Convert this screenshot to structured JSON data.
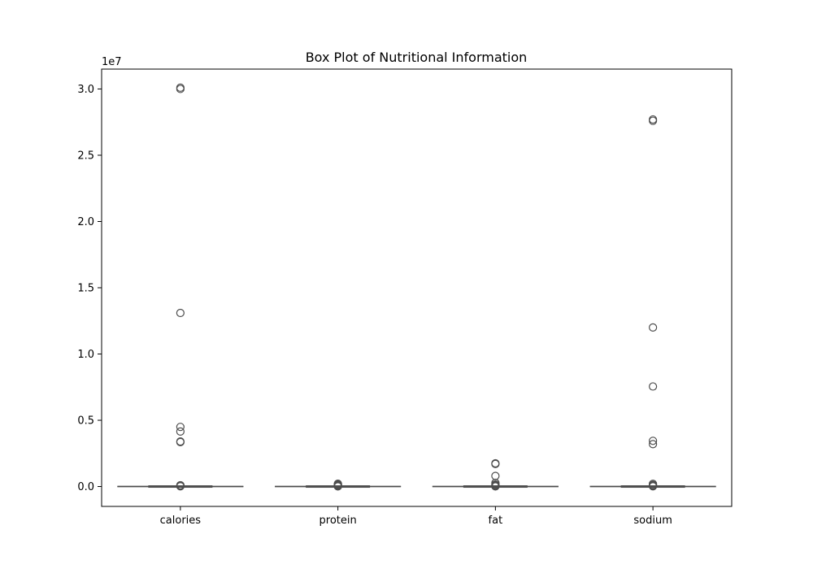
{
  "chart_data": {
    "type": "box",
    "title": "Box Plot of Nutritional Information",
    "xlabel": "",
    "ylabel": "",
    "y_offset_label": "1e7",
    "y_tick_values": [
      0.0,
      5000000,
      10000000,
      15000000,
      20000000,
      25000000,
      30000000
    ],
    "y_tick_labels": [
      "0.0",
      "0.5",
      "1.0",
      "1.5",
      "2.0",
      "2.5",
      "3.0"
    ],
    "ylim": [
      -1500000,
      31500000
    ],
    "grid": false,
    "categories": [
      "calories",
      "protein",
      "fat",
      "sodium"
    ],
    "series": [
      {
        "category": "calories",
        "whisker_low": 0,
        "q1": 0,
        "median": 0,
        "q3": 0,
        "whisker_high": 0,
        "outliers": [
          30100000,
          30000000,
          13100000,
          4500000,
          4150000,
          3400000,
          3350000,
          100000,
          60000,
          40000,
          20000
        ]
      },
      {
        "category": "protein",
        "whisker_low": 0,
        "q1": 0,
        "median": 0,
        "q3": 0,
        "whisker_high": 0,
        "outliers": [
          210000,
          170000,
          130000,
          90000,
          60000,
          30000,
          10000
        ]
      },
      {
        "category": "fat",
        "whisker_low": 0,
        "q1": 0,
        "median": 0,
        "q3": 0,
        "whisker_high": 0,
        "outliers": [
          1750000,
          1700000,
          800000,
          280000,
          160000,
          100000,
          60000,
          30000,
          10000
        ]
      },
      {
        "category": "sodium",
        "whisker_low": 0,
        "q1": 0,
        "median": 0,
        "q3": 0,
        "whisker_high": 0,
        "outliers": [
          27700000,
          27600000,
          12000000,
          7550000,
          3450000,
          3200000,
          200000,
          120000,
          80000,
          40000,
          20000
        ]
      }
    ],
    "colors": {
      "box_edge": "#4d4d4d",
      "outlier_edge": "#4d4d4d",
      "axis": "#000000"
    }
  }
}
